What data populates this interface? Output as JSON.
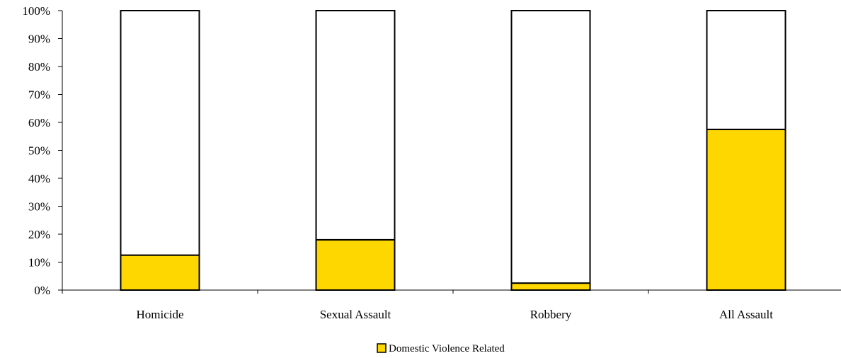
{
  "chart_data": {
    "type": "bar",
    "stacked": true,
    "categories": [
      "Homicide",
      "Sexual Assault",
      "Robbery",
      "All Assault"
    ],
    "series": [
      {
        "name": "Domestic Violence Related",
        "values": [
          12.5,
          18,
          2.5,
          57.5
        ],
        "color": "#FFD700"
      },
      {
        "values": [
          87.5,
          82,
          97.5,
          42.5
        ],
        "color": "#FFFFFF"
      }
    ],
    "ylim": [
      0,
      100
    ],
    "yticks": [
      "0%",
      "10%",
      "20%",
      "30%",
      "40%",
      "50%",
      "60%",
      "70%",
      "80%",
      "90%",
      "100%"
    ],
    "grid": false,
    "legend_position": "bottom"
  }
}
